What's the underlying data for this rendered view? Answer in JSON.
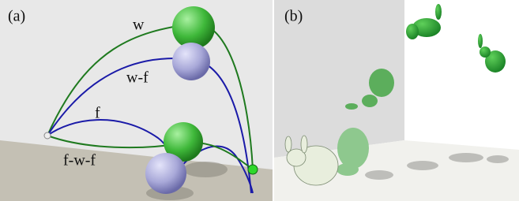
{
  "panels": [
    {
      "label": "(a)",
      "curve_labels": [
        "w",
        "w-f",
        "f",
        "f-w-f"
      ]
    },
    {
      "label": "(b)"
    }
  ]
}
